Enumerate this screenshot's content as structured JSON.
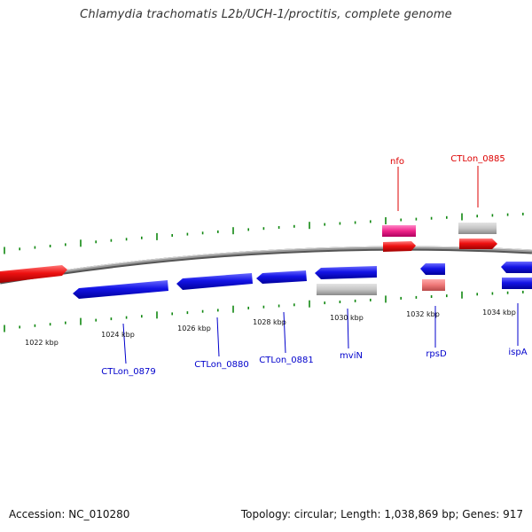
{
  "title": "Chlamydia trachomatis L2b/UCH-1/proctitis, complete genome",
  "footer": {
    "accession": "Accession: NC_010280",
    "topology": "Topology: circular; Length: 1,038,869 bp; Genes: 917"
  },
  "scale_labels": [
    "1022 kbp",
    "1024 kbp",
    "1026 kbp",
    "1028 kbp",
    "1030 kbp",
    "1032 kbp",
    "1034 kbp"
  ],
  "gene_labels": {
    "top": [
      "nfo",
      "CTLon_0885"
    ],
    "bottom": [
      "CTLon_0879",
      "CTLon_0880",
      "CTLon_0881",
      "mviN",
      "rpsD",
      "ispA"
    ]
  },
  "colors": {
    "red_gene": "#ee1111",
    "blue_gene": "#1111dd",
    "pink_gene": "#ee2288",
    "gray_gene": "#c4c4c4",
    "salmon_gene": "#ee7777",
    "backbone": "#888888",
    "tick": "#118811",
    "label_red": "#dd0000",
    "label_blue": "#0000cc"
  }
}
